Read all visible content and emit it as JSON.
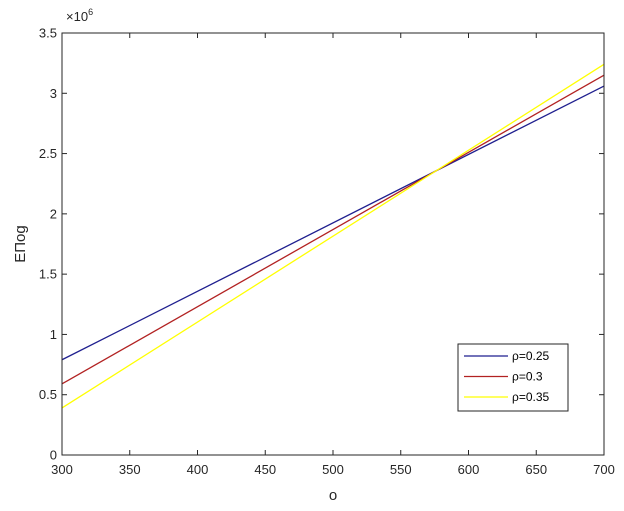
{
  "chart_data": {
    "type": "line",
    "xlabel": "o",
    "ylabel": "EПog",
    "exponent_label": "×10",
    "exponent_power": "6",
    "xlim": [
      300,
      700
    ],
    "ylim": [
      0,
      3500000
    ],
    "x_ticks": [
      300,
      350,
      400,
      450,
      500,
      550,
      600,
      650,
      700
    ],
    "x_tick_labels": [
      "300",
      "350",
      "400",
      "450",
      "500",
      "550",
      "600",
      "650",
      "700"
    ],
    "y_ticks": [
      0,
      500000,
      1000000,
      1500000,
      2000000,
      2500000,
      3000000,
      3500000
    ],
    "y_tick_labels": [
      "0",
      "0.5",
      "1",
      "1.5",
      "2",
      "2.5",
      "3",
      "3.5"
    ],
    "grid": false,
    "legend_position": "bottom-right",
    "series": [
      {
        "name": "ρ=0.25",
        "color": "#1f1f8f",
        "x": [
          300,
          700
        ],
        "y": [
          790000,
          3060000
        ]
      },
      {
        "name": "ρ=0.3",
        "color": "#b22222",
        "x": [
          300,
          700
        ],
        "y": [
          590000,
          3150000
        ]
      },
      {
        "name": "ρ=0.35",
        "color": "#ffff00",
        "x": [
          300,
          700
        ],
        "y": [
          390000,
          3240000
        ]
      }
    ]
  }
}
